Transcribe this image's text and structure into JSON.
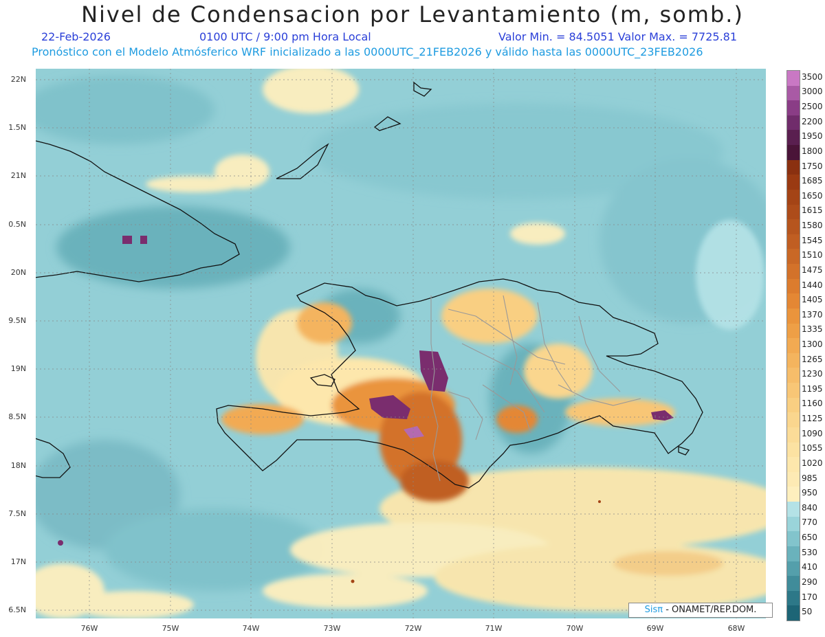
{
  "header": {
    "title": "Nivel de Condensacion por Levantamiento (m, somb.)",
    "date": "22-Feb-2026",
    "time": "0100 UTC / 9:00 pm Hora Local",
    "minmax": "Valor Min. = 84.5051   Valor Max. = 7725.81",
    "forecast": "Pronóstico con el Modelo Atmósferico WRF inicializado a las 0000UTC_21FEB2026 y válido hasta las  0000UTC_23FEB2026"
  },
  "axes": {
    "lat_labels": [
      "22N",
      "1.5N",
      "21N",
      "0.5N",
      "20N",
      "9.5N",
      "19N",
      "8.5N",
      "18N",
      "7.5N",
      "17N",
      "6.5N"
    ],
    "lon_labels": [
      "76W",
      "75W",
      "74W",
      "73W",
      "72W",
      "71W",
      "70W",
      "69W",
      "68W"
    ]
  },
  "colorbar": {
    "labels": [
      "3500",
      "3000",
      "2500",
      "2200",
      "1950",
      "1800",
      "1750",
      "1685",
      "1650",
      "1615",
      "1580",
      "1545",
      "1510",
      "1475",
      "1440",
      "1405",
      "1370",
      "1335",
      "1300",
      "1265",
      "1230",
      "1195",
      "1160",
      "1125",
      "1090",
      "1055",
      "1020",
      "985",
      "950",
      "840",
      "770",
      "650",
      "530",
      "410",
      "290",
      "170",
      "50"
    ],
    "colors": [
      "#c978c4",
      "#a95aa5",
      "#8a3d86",
      "#702c6b",
      "#5a1f50",
      "#4a1438",
      "#8a3010",
      "#9a3a12",
      "#a44416",
      "#ad4c1a",
      "#b6551e",
      "#c05e22",
      "#c96826",
      "#d3722a",
      "#dc7c2e",
      "#e48734",
      "#ea943c",
      "#ee9f46",
      "#f2aa52",
      "#f4b45e",
      "#f6bd6a",
      "#f8c676",
      "#f9cf82",
      "#fad68e",
      "#fbdc98",
      "#fce2a2",
      "#fde7ac",
      "#fdeab4",
      "#feefbe",
      "#b4e2e6",
      "#9ad4da",
      "#82c4cc",
      "#6ab2bc",
      "#549fab",
      "#408c9a",
      "#2d7888",
      "#1d6576"
    ]
  },
  "credit": {
    "brand": "Sisπ",
    "text": " - ONAMET/REP.DOM."
  },
  "colors": {
    "ocean_base": "#93cfd6",
    "ocean_deep": "#6ab2bc",
    "yellow_band": "#feefbe",
    "orange": "#e89040",
    "brown": "#8a3a12",
    "purple": "#7a2d6e"
  }
}
